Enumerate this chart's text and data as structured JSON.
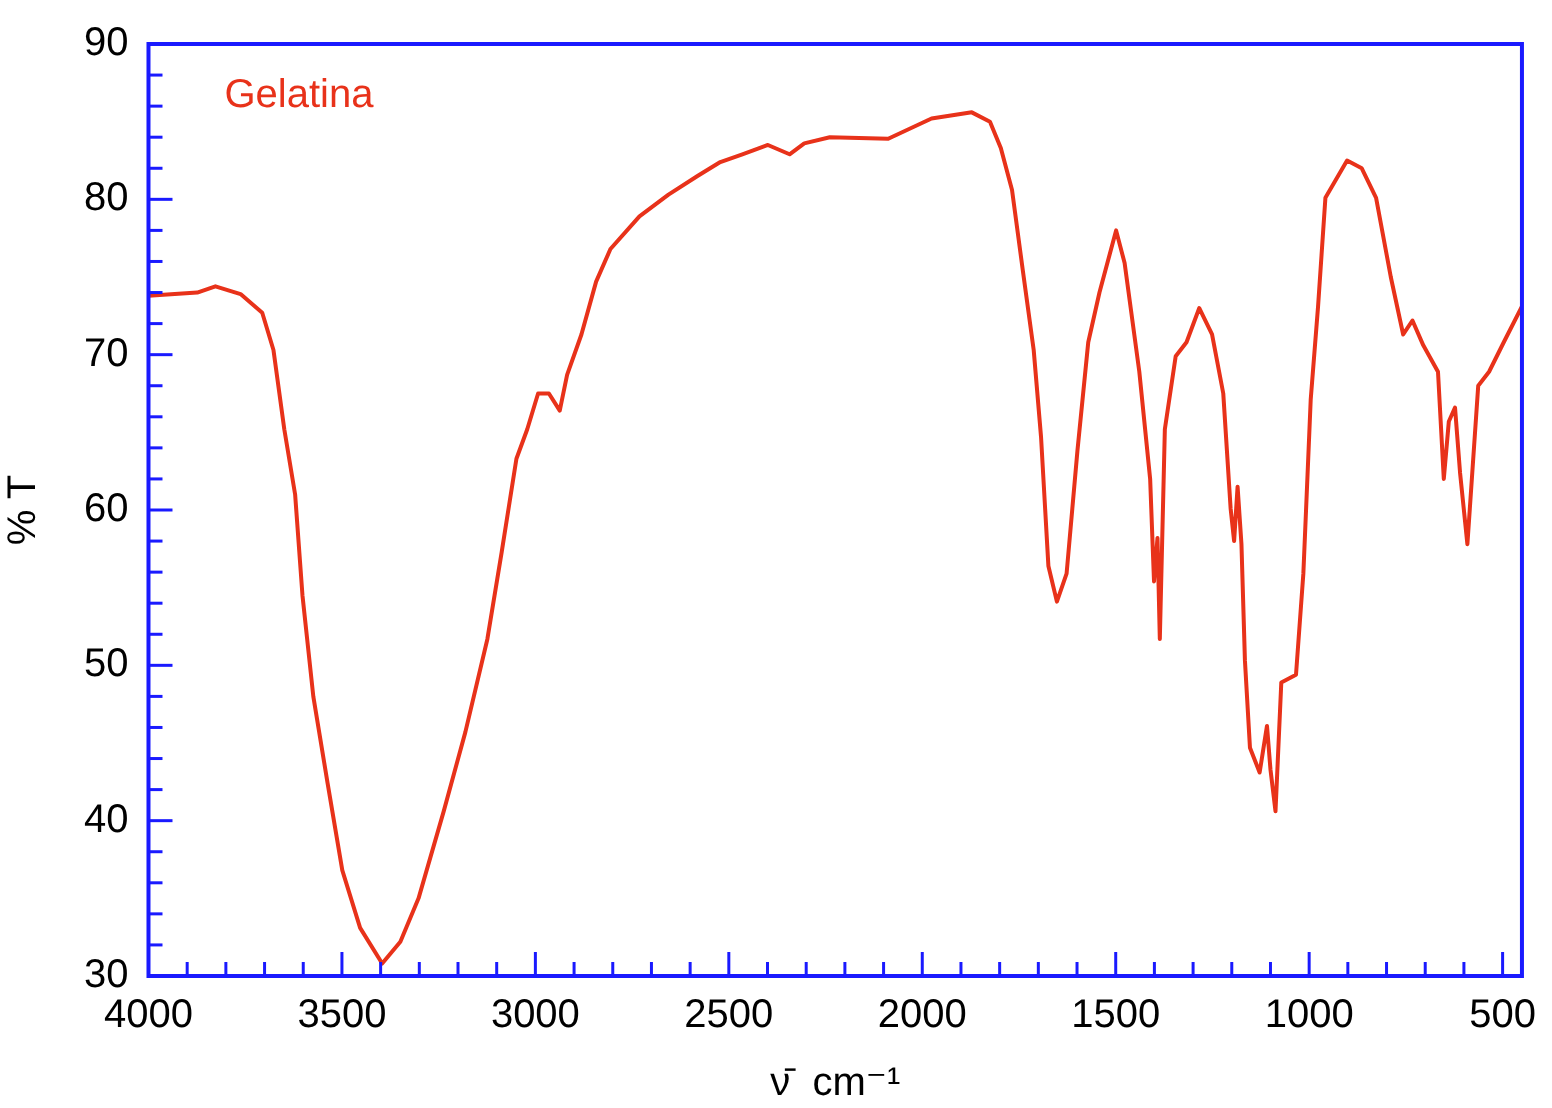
{
  "chart_data": {
    "type": "line",
    "xlabel": "ν̄  cm⁻¹",
    "ylabel": "% T",
    "marker": "none",
    "line_style": "solid",
    "xlim": [
      4000,
      450
    ],
    "ylim": [
      30,
      90
    ],
    "xticks": [
      4000,
      {
        "value": 3900,
        "label": null
      },
      {
        "value": 3800,
        "label": null
      },
      {
        "value": 3700,
        "label": null
      },
      {
        "value": 3600,
        "label": null
      },
      3500,
      {
        "value": 3400,
        "label": null
      },
      {
        "value": 3300,
        "label": null
      },
      {
        "value": 3200,
        "label": null
      },
      {
        "value": 3100,
        "label": null
      },
      3000,
      {
        "value": 2900,
        "label": null
      },
      {
        "value": 2800,
        "label": null
      },
      {
        "value": 2700,
        "label": null
      },
      {
        "value": 2600,
        "label": null
      },
      2500,
      {
        "value": 2400,
        "label": null
      },
      {
        "value": 2300,
        "label": null
      },
      {
        "value": 2200,
        "label": null
      },
      {
        "value": 2100,
        "label": null
      },
      2000,
      {
        "value": 1900,
        "label": null
      },
      {
        "value": 1800,
        "label": null
      },
      {
        "value": 1700,
        "label": null
      },
      {
        "value": 1600,
        "label": null
      },
      1500,
      {
        "value": 1400,
        "label": null
      },
      {
        "value": 1300,
        "label": null
      },
      {
        "value": 1200,
        "label": null
      },
      {
        "value": 1100,
        "label": null
      },
      1000,
      {
        "value": 900,
        "label": null
      },
      {
        "value": 800,
        "label": null
      },
      {
        "value": 700,
        "label": null
      },
      {
        "value": 600,
        "label": null
      },
      500
    ],
    "yticks": [
      30,
      {
        "value": 32,
        "label": null
      },
      {
        "value": 34,
        "label": null
      },
      {
        "value": 36,
        "label": null
      },
      {
        "value": 38,
        "label": null
      },
      40,
      {
        "value": 42,
        "label": null
      },
      {
        "value": 44,
        "label": null
      },
      {
        "value": 46,
        "label": null
      },
      {
        "value": 48,
        "label": null
      },
      50,
      {
        "value": 52,
        "label": null
      },
      {
        "value": 54,
        "label": null
      },
      {
        "value": 56,
        "label": null
      },
      {
        "value": 58,
        "label": null
      },
      60,
      {
        "value": 62,
        "label": null
      },
      {
        "value": 64,
        "label": null
      },
      {
        "value": 66,
        "label": null
      },
      {
        "value": 68,
        "label": null
      },
      70,
      {
        "value": 72,
        "label": null
      },
      {
        "value": 74,
        "label": null
      },
      {
        "value": 76,
        "label": null
      },
      {
        "value": 78,
        "label": null
      },
      80,
      {
        "value": 82,
        "label": null
      },
      {
        "value": 84,
        "label": null
      },
      {
        "value": 86,
        "label": null
      },
      {
        "value": 88,
        "label": null
      },
      90
    ],
    "series": [
      {
        "name": "Gelatina",
        "color": "#e8321a",
        "x": [
          4000,
          3874,
          3827,
          3762,
          3706,
          3677,
          3649,
          3621,
          3602,
          3574,
          3537,
          3499,
          3453,
          3396,
          3349,
          3302,
          3237,
          3181,
          3124,
          3087,
          3049,
          3021,
          2993,
          2965,
          2937,
          2918,
          2881,
          2843,
          2806,
          2731,
          2656,
          2581,
          2522,
          2465,
          2399,
          2343,
          2305,
          2239,
          2088,
          1976,
          1872,
          1825,
          1797,
          1768,
          1740,
          1712,
          1693,
          1674,
          1652,
          1627,
          1599,
          1571,
          1542,
          1499,
          1477,
          1439,
          1411,
          1401,
          1392,
          1386,
          1373,
          1345,
          1317,
          1284,
          1251,
          1222,
          1203,
          1194,
          1185,
          1175,
          1166,
          1153,
          1128,
          1109,
          1100,
          1087,
          1072,
          1034,
          1015,
          996,
          977,
          958,
          902,
          864,
          827,
          789,
          757,
          733,
          705,
          667,
          652,
          639,
          623,
          610,
          591,
          563,
          535,
          497,
          450
        ],
        "values": [
          73.8,
          74.0,
          74.4,
          73.9,
          72.7,
          70.3,
          65.2,
          61.0,
          54.5,
          48.0,
          42.4,
          36.8,
          33.1,
          30.8,
          32.2,
          35.0,
          40.6,
          45.7,
          51.7,
          57.3,
          63.3,
          65.2,
          67.5,
          67.5,
          66.4,
          68.7,
          71.3,
          74.7,
          76.8,
          78.9,
          80.3,
          81.5,
          82.4,
          82.9,
          83.5,
          82.9,
          83.6,
          84.0,
          83.9,
          85.2,
          85.6,
          85.0,
          83.3,
          80.6,
          75.4,
          70.3,
          64.7,
          56.4,
          54.1,
          55.9,
          63.8,
          70.8,
          74.0,
          78.0,
          75.9,
          68.9,
          62.0,
          55.4,
          58.2,
          51.7,
          65.2,
          69.9,
          70.8,
          73.0,
          71.3,
          67.5,
          60.1,
          58.0,
          61.5,
          57.8,
          50.3,
          44.7,
          43.1,
          46.1,
          43.3,
          40.6,
          48.9,
          49.4,
          55.9,
          67.1,
          73.1,
          80.1,
          82.5,
          82.0,
          80.1,
          75.0,
          71.3,
          72.2,
          70.6,
          68.9,
          62.0,
          65.7,
          66.6,
          62.4,
          57.8,
          68.0,
          68.9,
          70.8,
          73.1
        ]
      }
    ]
  }
}
